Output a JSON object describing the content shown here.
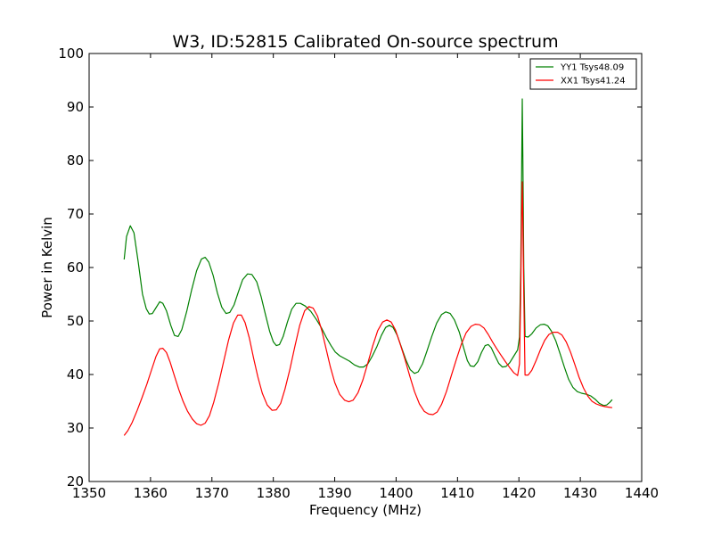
{
  "chart_data": {
    "type": "line",
    "title": "W3, ID:52815 Calibrated On-source spectrum",
    "xlabel": "Frequency (MHz)",
    "ylabel": "Power in Kelvin",
    "xlim": [
      1350,
      1440
    ],
    "ylim": [
      20,
      100
    ],
    "xticks": [
      1350,
      1360,
      1370,
      1380,
      1390,
      1400,
      1410,
      1420,
      1430,
      1440
    ],
    "yticks": [
      20,
      30,
      40,
      50,
      60,
      70,
      80,
      90,
      100
    ],
    "legend_position": "top-right",
    "series": [
      {
        "name": "YY1 Tsys48.09",
        "color": "#008000",
        "points": [
          [
            1355.7,
            61.5
          ],
          [
            1356.1,
            65.8
          ],
          [
            1356.7,
            67.8
          ],
          [
            1357.3,
            66.5
          ],
          [
            1358.0,
            61.0
          ],
          [
            1358.7,
            55.0
          ],
          [
            1359.3,
            52.3
          ],
          [
            1359.8,
            51.3
          ],
          [
            1360.3,
            51.4
          ],
          [
            1360.9,
            52.5
          ],
          [
            1361.5,
            53.6
          ],
          [
            1362.0,
            53.3
          ],
          [
            1362.6,
            51.9
          ],
          [
            1363.3,
            49.2
          ],
          [
            1363.9,
            47.3
          ],
          [
            1364.5,
            47.1
          ],
          [
            1365.1,
            48.4
          ],
          [
            1365.9,
            51.8
          ],
          [
            1366.7,
            55.8
          ],
          [
            1367.5,
            59.4
          ],
          [
            1368.3,
            61.6
          ],
          [
            1368.9,
            61.9
          ],
          [
            1369.5,
            61.0
          ],
          [
            1370.2,
            58.5
          ],
          [
            1370.9,
            55.2
          ],
          [
            1371.6,
            52.6
          ],
          [
            1372.3,
            51.4
          ],
          [
            1372.9,
            51.6
          ],
          [
            1373.6,
            53.0
          ],
          [
            1374.3,
            55.4
          ],
          [
            1375.0,
            57.7
          ],
          [
            1375.8,
            58.8
          ],
          [
            1376.5,
            58.7
          ],
          [
            1377.3,
            57.3
          ],
          [
            1378.0,
            54.6
          ],
          [
            1378.7,
            51.3
          ],
          [
            1379.4,
            48.1
          ],
          [
            1380.0,
            46.1
          ],
          [
            1380.5,
            45.4
          ],
          [
            1381.0,
            45.6
          ],
          [
            1381.6,
            47.1
          ],
          [
            1382.3,
            49.8
          ],
          [
            1383.0,
            52.2
          ],
          [
            1383.7,
            53.3
          ],
          [
            1384.4,
            53.3
          ],
          [
            1385.2,
            52.8
          ],
          [
            1386.1,
            51.8
          ],
          [
            1387.0,
            50.3
          ],
          [
            1387.8,
            48.8
          ],
          [
            1388.6,
            47.0
          ],
          [
            1389.4,
            45.4
          ],
          [
            1390.1,
            44.2
          ],
          [
            1390.8,
            43.5
          ],
          [
            1391.6,
            43.0
          ],
          [
            1392.4,
            42.5
          ],
          [
            1393.2,
            41.8
          ],
          [
            1394.0,
            41.4
          ],
          [
            1394.7,
            41.4
          ],
          [
            1395.4,
            42.0
          ],
          [
            1396.1,
            43.4
          ],
          [
            1396.9,
            45.3
          ],
          [
            1397.6,
            47.3
          ],
          [
            1398.3,
            48.8
          ],
          [
            1398.9,
            49.2
          ],
          [
            1399.5,
            48.8
          ],
          [
            1400.2,
            47.3
          ],
          [
            1400.9,
            45.0
          ],
          [
            1401.6,
            42.7
          ],
          [
            1402.3,
            40.9
          ],
          [
            1403.0,
            40.2
          ],
          [
            1403.6,
            40.5
          ],
          [
            1404.3,
            42.0
          ],
          [
            1405.0,
            44.3
          ],
          [
            1405.8,
            47.1
          ],
          [
            1406.6,
            49.6
          ],
          [
            1407.4,
            51.2
          ],
          [
            1408.1,
            51.7
          ],
          [
            1408.8,
            51.4
          ],
          [
            1409.5,
            50.2
          ],
          [
            1410.3,
            47.9
          ],
          [
            1411.0,
            45.0
          ],
          [
            1411.6,
            42.6
          ],
          [
            1412.1,
            41.6
          ],
          [
            1412.7,
            41.5
          ],
          [
            1413.3,
            42.4
          ],
          [
            1413.9,
            44.1
          ],
          [
            1414.5,
            45.4
          ],
          [
            1415.0,
            45.6
          ],
          [
            1415.5,
            45.0
          ],
          [
            1416.1,
            43.5
          ],
          [
            1416.7,
            42.1
          ],
          [
            1417.3,
            41.4
          ],
          [
            1417.9,
            41.5
          ],
          [
            1418.5,
            42.2
          ],
          [
            1419.2,
            43.5
          ],
          [
            1419.8,
            44.6
          ],
          [
            1420.1,
            47.0
          ],
          [
            1420.3,
            60.0
          ],
          [
            1420.45,
            78.0
          ],
          [
            1420.55,
            91.5
          ],
          [
            1420.65,
            80.0
          ],
          [
            1420.8,
            60.0
          ],
          [
            1421.0,
            47.1
          ],
          [
            1421.5,
            47.0
          ],
          [
            1422.1,
            47.6
          ],
          [
            1422.8,
            48.7
          ],
          [
            1423.5,
            49.3
          ],
          [
            1424.1,
            49.4
          ],
          [
            1424.7,
            49.1
          ],
          [
            1425.3,
            48.1
          ],
          [
            1426.0,
            46.3
          ],
          [
            1426.7,
            43.9
          ],
          [
            1427.4,
            41.4
          ],
          [
            1428.1,
            39.1
          ],
          [
            1428.8,
            37.6
          ],
          [
            1429.5,
            36.8
          ],
          [
            1430.2,
            36.5
          ],
          [
            1431.0,
            36.3
          ],
          [
            1431.7,
            36.0
          ],
          [
            1432.4,
            35.4
          ],
          [
            1433.1,
            34.6
          ],
          [
            1433.8,
            34.2
          ],
          [
            1434.3,
            34.3
          ],
          [
            1434.8,
            34.8
          ],
          [
            1435.2,
            35.3
          ]
        ]
      },
      {
        "name": "XX1 Tsys41.24",
        "color": "#ff0000",
        "points": [
          [
            1355.7,
            28.6
          ],
          [
            1356.3,
            29.5
          ],
          [
            1357.0,
            31.0
          ],
          [
            1357.8,
            33.2
          ],
          [
            1358.6,
            35.6
          ],
          [
            1359.4,
            38.2
          ],
          [
            1360.2,
            41.0
          ],
          [
            1360.9,
            43.4
          ],
          [
            1361.5,
            44.8
          ],
          [
            1362.0,
            44.9
          ],
          [
            1362.6,
            44.1
          ],
          [
            1363.2,
            42.3
          ],
          [
            1363.9,
            39.7
          ],
          [
            1364.6,
            37.2
          ],
          [
            1365.3,
            35.0
          ],
          [
            1366.0,
            33.2
          ],
          [
            1366.8,
            31.7
          ],
          [
            1367.5,
            30.8
          ],
          [
            1368.2,
            30.5
          ],
          [
            1368.9,
            30.9
          ],
          [
            1369.6,
            32.3
          ],
          [
            1370.3,
            34.8
          ],
          [
            1371.1,
            38.4
          ],
          [
            1371.9,
            42.4
          ],
          [
            1372.7,
            46.4
          ],
          [
            1373.5,
            49.6
          ],
          [
            1374.2,
            51.1
          ],
          [
            1374.8,
            51.1
          ],
          [
            1375.4,
            49.7
          ],
          [
            1376.1,
            46.8
          ],
          [
            1376.8,
            43.0
          ],
          [
            1377.5,
            39.5
          ],
          [
            1378.2,
            36.5
          ],
          [
            1379.0,
            34.3
          ],
          [
            1379.8,
            33.3
          ],
          [
            1380.5,
            33.4
          ],
          [
            1381.2,
            34.6
          ],
          [
            1381.9,
            37.3
          ],
          [
            1382.7,
            41.0
          ],
          [
            1383.5,
            45.2
          ],
          [
            1384.3,
            49.2
          ],
          [
            1385.1,
            51.9
          ],
          [
            1385.8,
            52.7
          ],
          [
            1386.5,
            52.4
          ],
          [
            1387.2,
            50.9
          ],
          [
            1387.9,
            48.2
          ],
          [
            1388.6,
            44.8
          ],
          [
            1389.3,
            41.4
          ],
          [
            1390.0,
            38.5
          ],
          [
            1390.8,
            36.3
          ],
          [
            1391.6,
            35.2
          ],
          [
            1392.3,
            34.9
          ],
          [
            1393.0,
            35.2
          ],
          [
            1393.8,
            36.6
          ],
          [
            1394.6,
            39.0
          ],
          [
            1395.4,
            42.2
          ],
          [
            1396.2,
            45.4
          ],
          [
            1397.0,
            48.2
          ],
          [
            1397.8,
            49.8
          ],
          [
            1398.5,
            50.2
          ],
          [
            1399.2,
            49.8
          ],
          [
            1399.9,
            48.3
          ],
          [
            1400.6,
            45.9
          ],
          [
            1401.4,
            43.0
          ],
          [
            1402.2,
            39.8
          ],
          [
            1403.0,
            36.8
          ],
          [
            1403.8,
            34.5
          ],
          [
            1404.6,
            33.1
          ],
          [
            1405.3,
            32.6
          ],
          [
            1406.0,
            32.5
          ],
          [
            1406.7,
            33.0
          ],
          [
            1407.4,
            34.4
          ],
          [
            1408.2,
            36.8
          ],
          [
            1409.0,
            39.8
          ],
          [
            1409.8,
            42.8
          ],
          [
            1410.6,
            45.6
          ],
          [
            1411.4,
            47.8
          ],
          [
            1412.2,
            49.0
          ],
          [
            1412.9,
            49.4
          ],
          [
            1413.6,
            49.3
          ],
          [
            1414.3,
            48.7
          ],
          [
            1415.0,
            47.5
          ],
          [
            1415.7,
            46.1
          ],
          [
            1416.4,
            44.8
          ],
          [
            1417.1,
            43.6
          ],
          [
            1417.8,
            42.4
          ],
          [
            1418.5,
            41.3
          ],
          [
            1419.2,
            40.3
          ],
          [
            1419.8,
            39.8
          ],
          [
            1420.1,
            42.0
          ],
          [
            1420.3,
            55.0
          ],
          [
            1420.45,
            70.0
          ],
          [
            1420.55,
            76.0
          ],
          [
            1420.65,
            68.0
          ],
          [
            1420.8,
            55.0
          ],
          [
            1421.0,
            39.9
          ],
          [
            1421.5,
            39.9
          ],
          [
            1422.1,
            40.8
          ],
          [
            1422.8,
            42.6
          ],
          [
            1423.5,
            44.6
          ],
          [
            1424.2,
            46.4
          ],
          [
            1424.9,
            47.5
          ],
          [
            1425.6,
            47.9
          ],
          [
            1426.3,
            47.9
          ],
          [
            1427.0,
            47.4
          ],
          [
            1427.7,
            46.1
          ],
          [
            1428.4,
            44.2
          ],
          [
            1429.1,
            41.9
          ],
          [
            1429.8,
            39.5
          ],
          [
            1430.5,
            37.5
          ],
          [
            1431.2,
            36.0
          ],
          [
            1431.9,
            35.0
          ],
          [
            1432.6,
            34.5
          ],
          [
            1433.3,
            34.2
          ],
          [
            1434.0,
            34.0
          ],
          [
            1434.6,
            33.9
          ],
          [
            1435.2,
            33.8
          ]
        ]
      }
    ]
  }
}
